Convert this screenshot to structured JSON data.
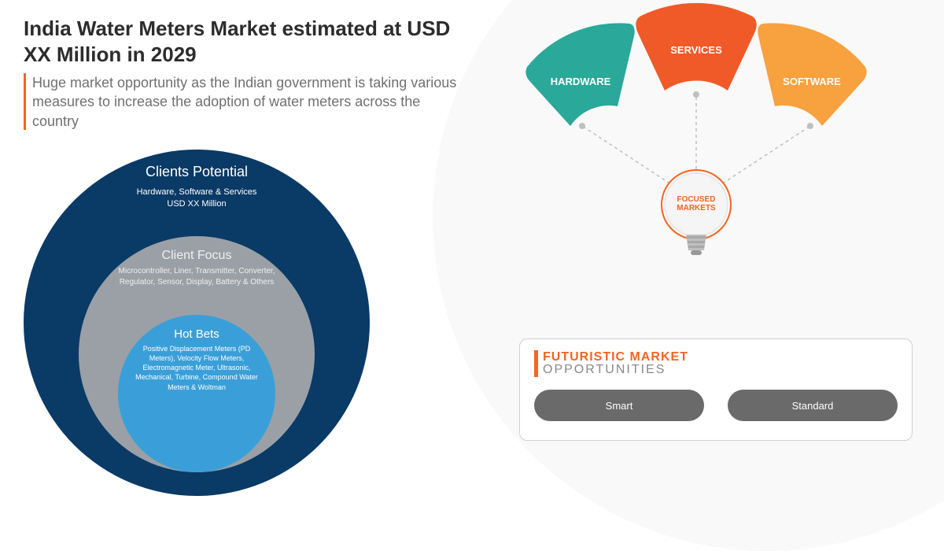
{
  "header": {
    "title": "India Water Meters Market estimated at USD XX Million in 2029",
    "subtitle": "Huge market opportunity as the Indian government is taking various measures to increase the adoption of water meters across the country",
    "accent_color": "#f26522",
    "title_color": "#2c2c2c",
    "subtitle_color": "#707070",
    "title_fontsize": 26,
    "subtitle_fontsize": 18
  },
  "circles": {
    "outer": {
      "title": "Clients Potential",
      "text": "Hardware, Software & Services\nUSD XX Million",
      "color": "#0a3a66",
      "diameter": 440
    },
    "mid": {
      "title": "Client Focus",
      "text": "Microcontroller, Liner, Transmitter, Converter, Regulator, Sensor, Display, Battery & Others",
      "color": "#9aa0a6",
      "diameter": 300
    },
    "inner": {
      "title": "Hot Bets",
      "text": "Positive Displacement Meters (PD Meters), Velocity Flow Meters, Electromagnetic Meter, Ultrasonic, Mechanical, Turbine, Compound Water Meters & Woltman",
      "color": "#3a9fd8",
      "diameter": 200
    }
  },
  "fan": {
    "segments": [
      {
        "label": "HARDWARE",
        "color": "#2aa89a"
      },
      {
        "label": "SERVICES",
        "color": "#f05a28"
      },
      {
        "label": "SOFTWARE",
        "color": "#f8a13f"
      }
    ],
    "connector_color": "#bfbfbf"
  },
  "bulb": {
    "line1": "FOCUSED",
    "line2": "MARKETS",
    "outline_color": "#f26522",
    "glass_color": "#e8e8e8"
  },
  "opportunities": {
    "headline1": "FUTURISTIC MARKET",
    "headline2": "OPPORTUNITIES",
    "accent_color": "#f26522",
    "border_color": "#d0d0d0",
    "pills": [
      {
        "label": "Smart",
        "bg": "#6a6a6a"
      },
      {
        "label": "Standard",
        "bg": "#6a6a6a"
      }
    ]
  },
  "background": {
    "page": "#ffffff",
    "circle_bg": "#f9f9f9"
  }
}
